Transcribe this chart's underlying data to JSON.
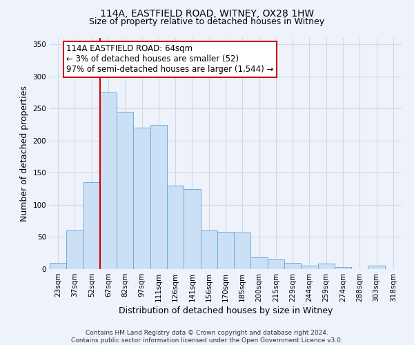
{
  "title": "114A, EASTFIELD ROAD, WITNEY, OX28 1HW",
  "subtitle": "Size of property relative to detached houses in Witney",
  "xlabel": "Distribution of detached houses by size in Witney",
  "ylabel": "Number of detached properties",
  "bin_labels": [
    "23sqm",
    "37sqm",
    "52sqm",
    "67sqm",
    "82sqm",
    "97sqm",
    "111sqm",
    "126sqm",
    "141sqm",
    "156sqm",
    "170sqm",
    "185sqm",
    "200sqm",
    "215sqm",
    "229sqm",
    "244sqm",
    "259sqm",
    "274sqm",
    "288sqm",
    "303sqm",
    "318sqm"
  ],
  "bar_values": [
    10,
    60,
    135,
    275,
    245,
    220,
    225,
    130,
    125,
    60,
    58,
    57,
    18,
    15,
    10,
    5,
    9,
    3,
    0,
    5,
    0
  ],
  "bar_color": "#cce0f5",
  "bar_edge_color": "#6aaed6",
  "vline_color": "#cc0000",
  "annotation_text": "114A EASTFIELD ROAD: 64sqm\n← 3% of detached houses are smaller (52)\n97% of semi-detached houses are larger (1,544) →",
  "annotation_box_color": "#ffffff",
  "annotation_box_edge_color": "#cc0000",
  "ylim": [
    0,
    360
  ],
  "yticks": [
    0,
    50,
    100,
    150,
    200,
    250,
    300,
    350
  ],
  "footer_line1": "Contains HM Land Registry data © Crown copyright and database right 2024.",
  "footer_line2": "Contains public sector information licensed under the Open Government Licence v3.0.",
  "background_color": "#eef2fa",
  "plot_background": "#eef2fa",
  "grid_color": "#d0d8e8",
  "title_fontsize": 10,
  "subtitle_fontsize": 9,
  "axis_label_fontsize": 9,
  "tick_fontsize": 7.5,
  "annotation_fontsize": 8.5,
  "footer_fontsize": 6.5
}
